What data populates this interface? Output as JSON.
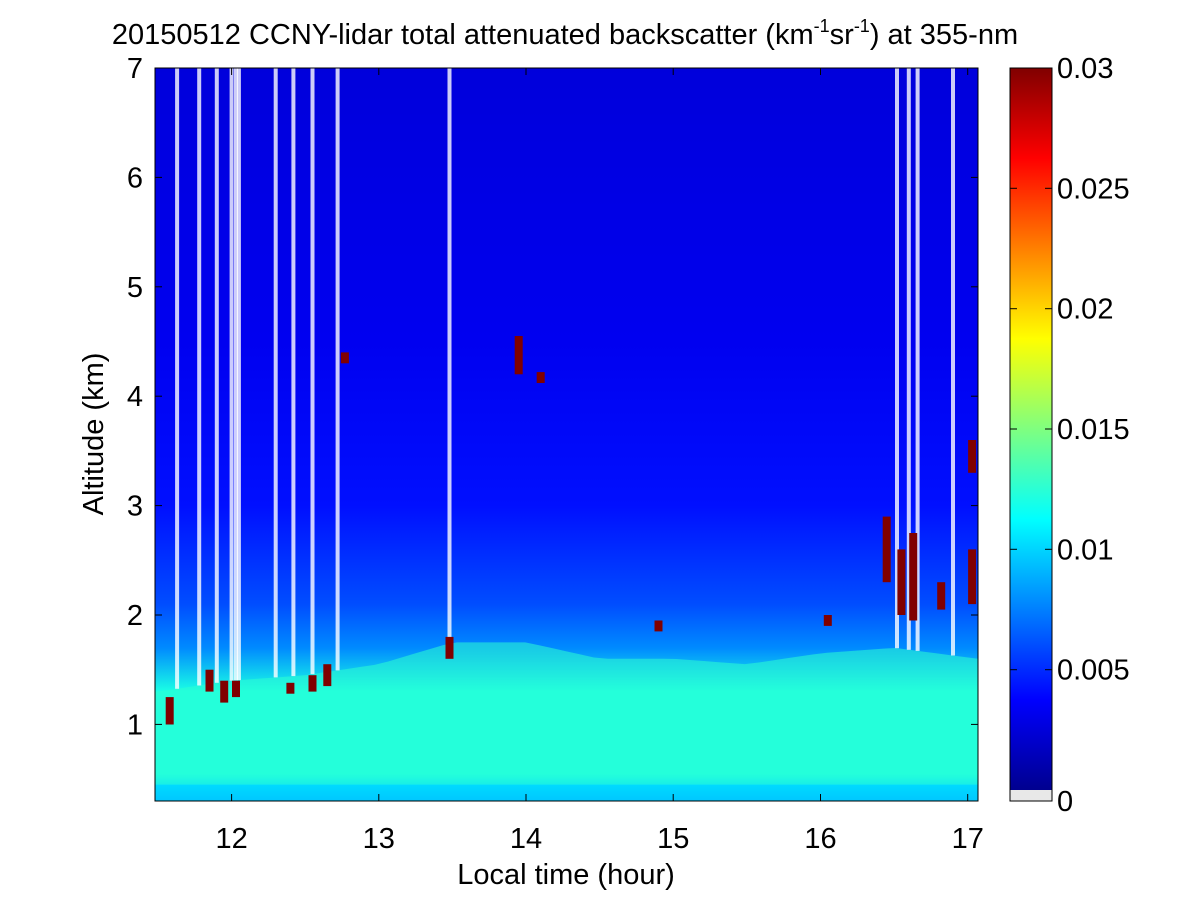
{
  "chart_data": {
    "type": "heatmap",
    "title": {
      "main": "20150512 CCNY-lidar total attenuated backscatter (km",
      "sup1": "-1",
      "mid": "sr",
      "sup2": "-1",
      "tail": ") at 355-nm"
    },
    "xlabel": "Local time (hour)",
    "ylabel": "Altitude (km)",
    "xlim": [
      11.48,
      17.07
    ],
    "ylim": [
      0.3,
      7
    ],
    "xticks": [
      12,
      13,
      14,
      15,
      16,
      17
    ],
    "yticks": [
      1,
      2,
      3,
      4,
      5,
      6,
      7
    ],
    "colorbar": {
      "range": [
        0,
        0.03
      ],
      "ticks": [
        0,
        0.005,
        0.01,
        0.015,
        0.02,
        0.025,
        0.03
      ],
      "tick_labels": [
        "0",
        "0.005",
        "0.01",
        "0.015",
        "0.02",
        "0.025",
        "0.03"
      ],
      "colormap": "jet"
    },
    "field": {
      "free_troposphere_value": 0.003,
      "boundary_layer_value": 0.012,
      "boundary_layer_top_km": [
        [
          11.5,
          1.3
        ],
        [
          12.0,
          1.4
        ],
        [
          12.5,
          1.45
        ],
        [
          13.0,
          1.55
        ],
        [
          13.5,
          1.75
        ],
        [
          14.0,
          1.75
        ],
        [
          14.5,
          1.6
        ],
        [
          15.0,
          1.6
        ],
        [
          15.5,
          1.55
        ],
        [
          16.0,
          1.65
        ],
        [
          16.5,
          1.7
        ],
        [
          17.07,
          1.6
        ]
      ],
      "residual_layer_top_km": 2.1,
      "surface_layer_top_km": 0.45
    },
    "clouds": [
      {
        "time": 11.58,
        "alt_from": 1.0,
        "alt_to": 1.25,
        "value": 0.03
      },
      {
        "time": 11.85,
        "alt_from": 1.3,
        "alt_to": 1.5,
        "value": 0.03
      },
      {
        "time": 11.95,
        "alt_from": 1.2,
        "alt_to": 1.4,
        "value": 0.03
      },
      {
        "time": 12.03,
        "alt_from": 1.25,
        "alt_to": 1.4,
        "value": 0.03
      },
      {
        "time": 12.4,
        "alt_from": 1.28,
        "alt_to": 1.38,
        "value": 0.03
      },
      {
        "time": 12.55,
        "alt_from": 1.3,
        "alt_to": 1.45,
        "value": 0.03
      },
      {
        "time": 12.65,
        "alt_from": 1.35,
        "alt_to": 1.55,
        "value": 0.03
      },
      {
        "time": 12.77,
        "alt_from": 4.3,
        "alt_to": 4.4,
        "value": 0.03
      },
      {
        "time": 13.48,
        "alt_from": 1.6,
        "alt_to": 1.8,
        "value": 0.03
      },
      {
        "time": 13.95,
        "alt_from": 4.2,
        "alt_to": 4.55,
        "value": 0.03
      },
      {
        "time": 14.1,
        "alt_from": 4.12,
        "alt_to": 4.22,
        "value": 0.03
      },
      {
        "time": 14.9,
        "alt_from": 1.85,
        "alt_to": 1.95,
        "value": 0.03
      },
      {
        "time": 16.05,
        "alt_from": 1.9,
        "alt_to": 2.0,
        "value": 0.03
      },
      {
        "time": 16.45,
        "alt_from": 2.3,
        "alt_to": 2.9,
        "value": 0.03
      },
      {
        "time": 16.55,
        "alt_from": 2.0,
        "alt_to": 2.6,
        "value": 0.03
      },
      {
        "time": 16.63,
        "alt_from": 1.95,
        "alt_to": 2.75,
        "value": 0.03
      },
      {
        "time": 16.82,
        "alt_from": 2.05,
        "alt_to": 2.3,
        "value": 0.03
      },
      {
        "time": 17.03,
        "alt_from": 2.1,
        "alt_to": 2.6,
        "value": 0.03
      },
      {
        "time": 17.03,
        "alt_from": 3.3,
        "alt_to": 3.6,
        "value": 0.03
      }
    ],
    "signal_dropouts_hours": [
      11.63,
      11.78,
      11.9,
      12.0,
      12.03,
      12.05,
      12.3,
      12.42,
      12.55,
      12.72,
      13.48,
      16.52,
      16.6,
      16.66,
      16.9
    ]
  }
}
